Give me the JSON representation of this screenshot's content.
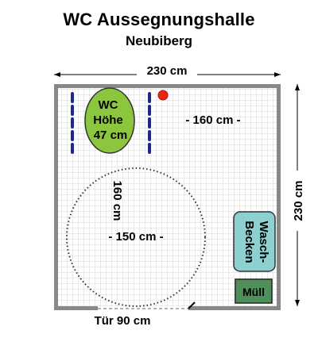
{
  "header": {
    "title": "WC Aussegnungshalle",
    "subtitle": "Neubiberg"
  },
  "plan": {
    "width_label": "230 cm",
    "height_label": "230 cm",
    "toilet": {
      "line1": "WC",
      "line2": "Höhe",
      "line3": "47 cm"
    },
    "toilet_clearance_label": "- 160 cm -",
    "circle_horizontal_label": "- 150 cm -",
    "circle_vertical_label": "160 cm",
    "sink": {
      "line1": "Wasch-",
      "line2": "Becken"
    },
    "bin_label": "Müll",
    "door_label": "Tür 90 cm"
  },
  "colors": {
    "toilet_fill": "#8cc63f",
    "sink_fill": "#8ecfd0",
    "bin_fill": "#4f8f5a",
    "handrail": "#1a2a8c",
    "marker": "#ee2211",
    "grid_line": "#d6d6d6"
  }
}
